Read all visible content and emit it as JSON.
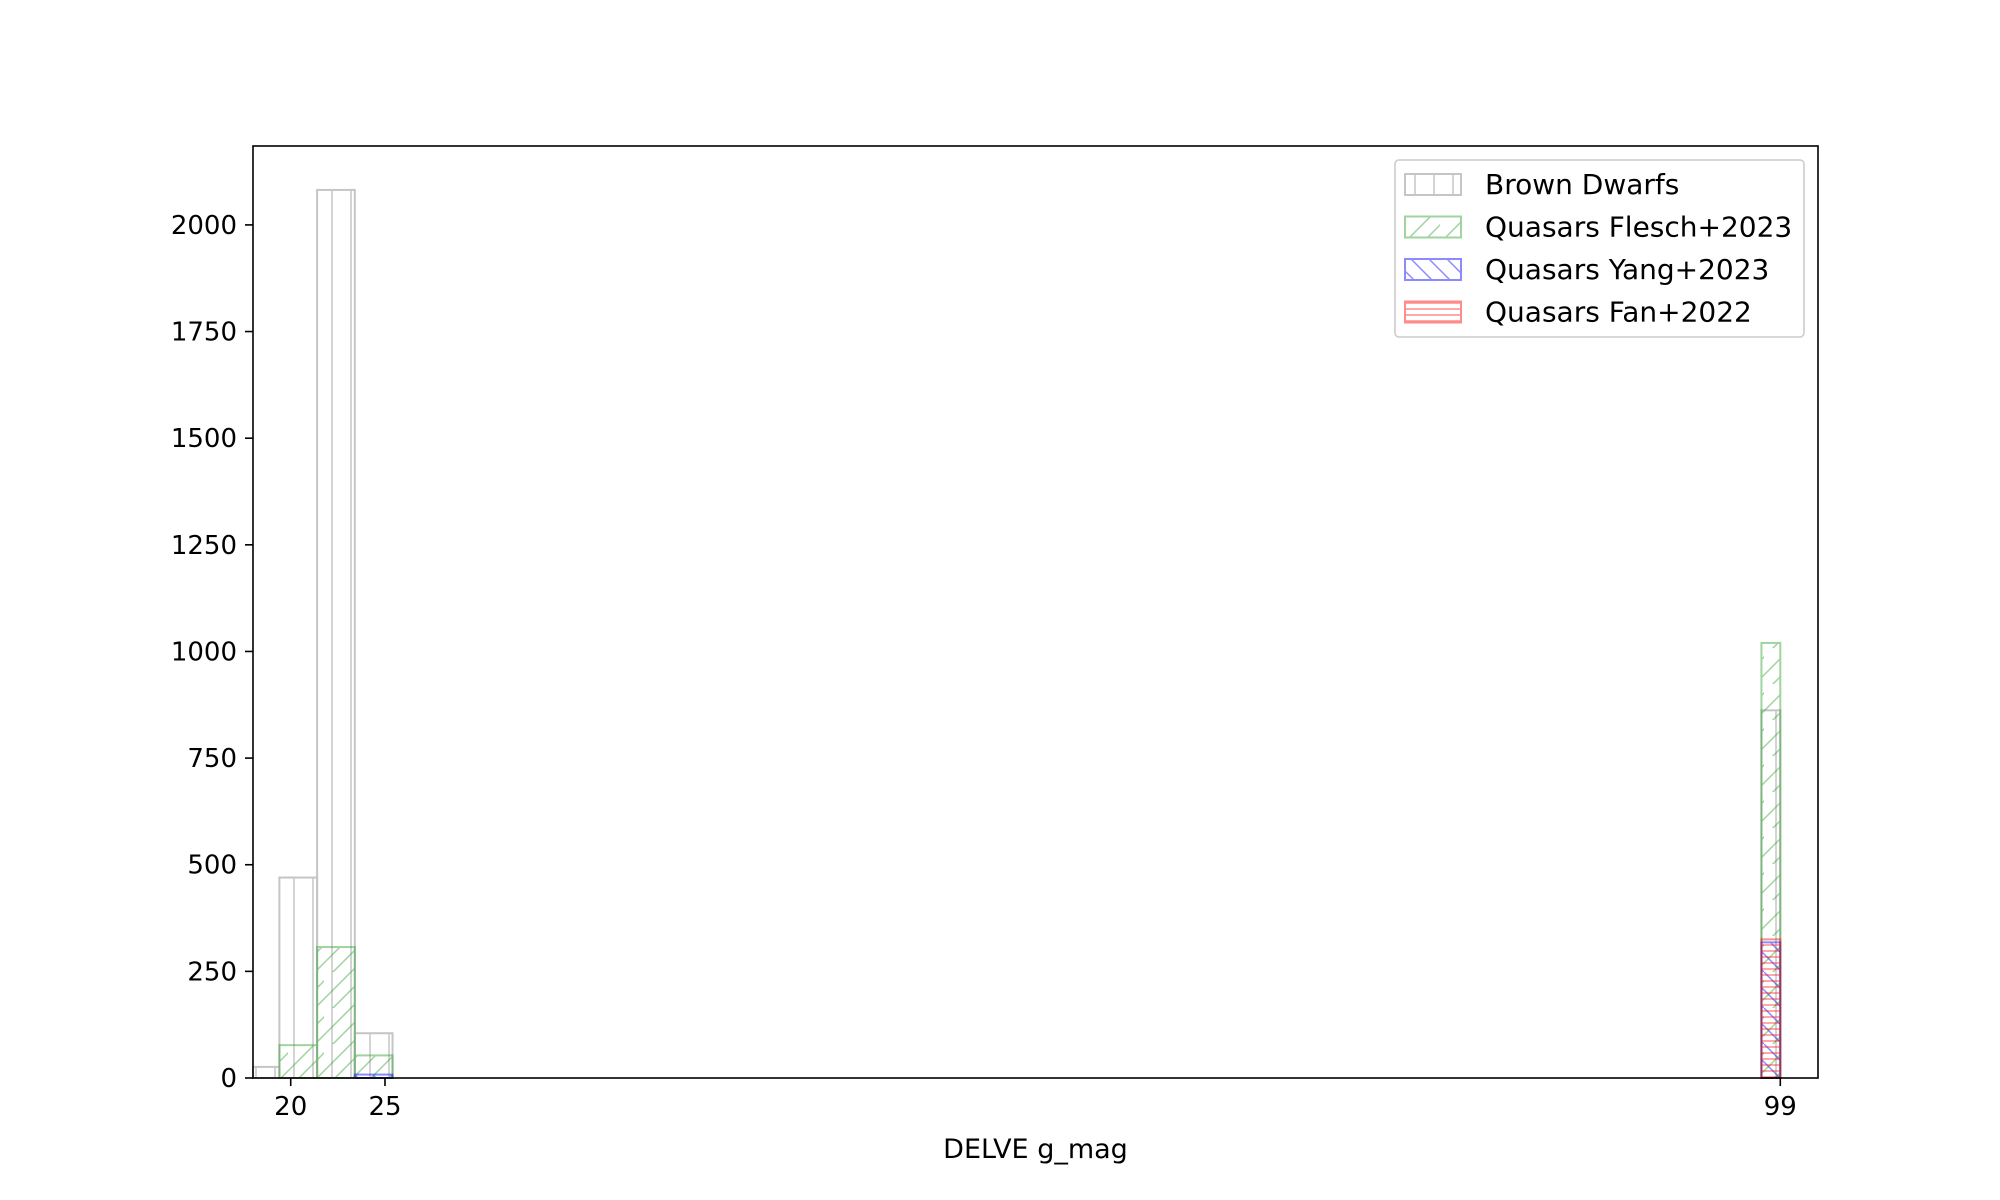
{
  "chart_data": {
    "type": "histogram",
    "title": "",
    "xlabel": "DELVE g_mag",
    "ylabel": "",
    "xlim": [
      18.0,
      101.0
    ],
    "ylim": [
      0,
      2185
    ],
    "x_ticks": [
      20,
      25,
      99
    ],
    "y_ticks": [
      0,
      250,
      500,
      750,
      1000,
      1250,
      1500,
      1750,
      2000
    ],
    "grid": false,
    "legend_position": "top-right",
    "series": [
      {
        "name": "Brown Dwarfs",
        "color": "#808080",
        "hatch": "vertical",
        "bins": [
          {
            "x0": 17.4,
            "x1": 19.4,
            "value": 26
          },
          {
            "x0": 19.4,
            "x1": 21.4,
            "value": 470
          },
          {
            "x0": 21.4,
            "x1": 23.4,
            "value": 2082
          },
          {
            "x0": 23.4,
            "x1": 25.4,
            "value": 105
          },
          {
            "x0": 98.0,
            "x1": 99.0,
            "value": 862
          }
        ]
      },
      {
        "name": "Quasars Flesch+2023",
        "color": "#2ca02c",
        "hatch": "forward-diagonal",
        "bins": [
          {
            "x0": 19.4,
            "x1": 21.4,
            "value": 77
          },
          {
            "x0": 21.4,
            "x1": 23.4,
            "value": 307
          },
          {
            "x0": 23.4,
            "x1": 25.4,
            "value": 53
          },
          {
            "x0": 98.0,
            "x1": 99.0,
            "value": 1020
          }
        ]
      },
      {
        "name": "Quasars Yang+2023",
        "color": "#0000ff",
        "hatch": "back-diagonal",
        "bins": [
          {
            "x0": 23.4,
            "x1": 25.4,
            "value": 8
          },
          {
            "x0": 98.0,
            "x1": 99.0,
            "value": 318
          }
        ]
      },
      {
        "name": "Quasars Fan+2022",
        "color": "#ff0000",
        "hatch": "horizontal",
        "bins": [
          {
            "x0": 98.0,
            "x1": 99.0,
            "value": 325
          }
        ]
      }
    ]
  }
}
